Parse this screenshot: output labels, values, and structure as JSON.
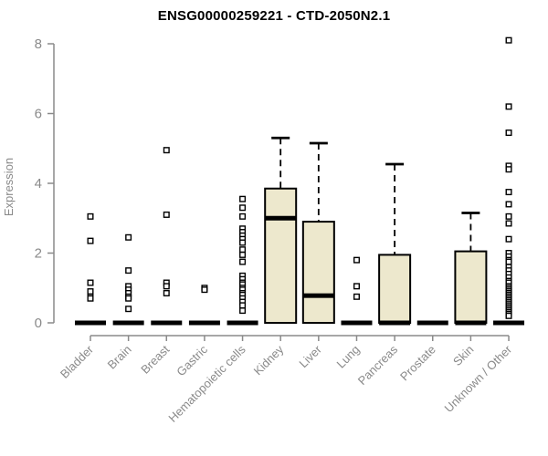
{
  "style": {
    "background": "#FFFFFF",
    "box_fill": "#EDE8CD",
    "box_stroke": "#000000",
    "median_color": "#000000",
    "whisker_color": "#000000",
    "outlier_fill": "#FFFFFF",
    "outlier_stroke": "#000000",
    "axis_color": "#8A8A8A",
    "title_color": "#000000"
  },
  "chart_data": {
    "type": "boxplot",
    "title": "ENSG00000259221 - CTD-2050N2.1",
    "ylabel": "Expression",
    "xlabel": "",
    "ylim": [
      0,
      8.2
    ],
    "y_ticks": [
      0,
      2,
      4,
      6,
      8
    ],
    "grid": false,
    "legend": false,
    "categories": [
      "Bladder",
      "Brain",
      "Breast",
      "Gastric",
      "Hematopoietic cells",
      "Kidney",
      "Liver",
      "Lung",
      "Pancreas",
      "Prostate",
      "Skin",
      "Unknown / Other"
    ],
    "series": [
      {
        "name": "Bladder",
        "whisker_low": 0,
        "q1": 0,
        "median": 0,
        "q3": 0,
        "whisker_high": 0,
        "outliers": [
          3.05,
          2.35,
          1.15,
          0.9,
          0.75,
          0.7
        ]
      },
      {
        "name": "Brain",
        "whisker_low": 0,
        "q1": 0,
        "median": 0,
        "q3": 0,
        "whisker_high": 0,
        "outliers": [
          2.45,
          1.5,
          1.05,
          0.95,
          0.85,
          0.75,
          0.7,
          0.4
        ]
      },
      {
        "name": "Breast",
        "whisker_low": 0,
        "q1": 0,
        "median": 0,
        "q3": 0,
        "whisker_high": 0,
        "outliers": [
          4.95,
          3.1,
          1.15,
          1.05,
          0.85
        ]
      },
      {
        "name": "Gastric",
        "whisker_low": 0,
        "q1": 0,
        "median": 0,
        "q3": 0,
        "whisker_high": 0,
        "outliers": [
          1.0,
          0.95
        ]
      },
      {
        "name": "Hematopoietic cells",
        "whisker_low": 0,
        "q1": 0,
        "median": 0,
        "q3": 0,
        "whisker_high": 0,
        "outliers": [
          3.55,
          3.3,
          3.05,
          2.7,
          2.6,
          2.5,
          2.4,
          2.3,
          2.1,
          1.95,
          1.75,
          1.35,
          1.25,
          1.15,
          1.1,
          1.0,
          0.95,
          0.85,
          0.8,
          0.7,
          0.6,
          0.5,
          0.35
        ]
      },
      {
        "name": "Kidney",
        "whisker_low": 0,
        "q1": 0,
        "median": 3.0,
        "q3": 3.85,
        "whisker_high": 5.3,
        "outliers": []
      },
      {
        "name": "Liver",
        "whisker_low": 0,
        "q1": 0,
        "median": 0.78,
        "q3": 2.9,
        "whisker_high": 5.15,
        "outliers": []
      },
      {
        "name": "Lung",
        "whisker_low": 0,
        "q1": 0,
        "median": 0,
        "q3": 0,
        "whisker_high": 0,
        "outliers": [
          1.8,
          1.05,
          0.75
        ]
      },
      {
        "name": "Pancreas",
        "whisker_low": 0,
        "q1": 0,
        "median": 0,
        "q3": 1.95,
        "whisker_high": 4.55,
        "outliers": []
      },
      {
        "name": "Prostate",
        "whisker_low": 0,
        "q1": 0,
        "median": 0,
        "q3": 0,
        "whisker_high": 0,
        "outliers": []
      },
      {
        "name": "Skin",
        "whisker_low": 0,
        "q1": 0,
        "median": 0,
        "q3": 2.05,
        "whisker_high": 3.15,
        "outliers": []
      },
      {
        "name": "Unknown / Other",
        "whisker_low": 0,
        "q1": 0,
        "median": 0,
        "q3": 0,
        "whisker_high": 0,
        "outliers": [
          8.1,
          6.2,
          5.45,
          4.5,
          4.4,
          3.75,
          3.4,
          3.05,
          2.85,
          2.4,
          2.0,
          1.9,
          1.8,
          1.75,
          1.6,
          1.5,
          1.4,
          1.3,
          1.2,
          1.15,
          1.05,
          1.0,
          0.95,
          0.9,
          0.85,
          0.8,
          0.75,
          0.7,
          0.65,
          0.6,
          0.55,
          0.5,
          0.45,
          0.4,
          0.35,
          0.3,
          0.25,
          0.2
        ]
      }
    ]
  }
}
